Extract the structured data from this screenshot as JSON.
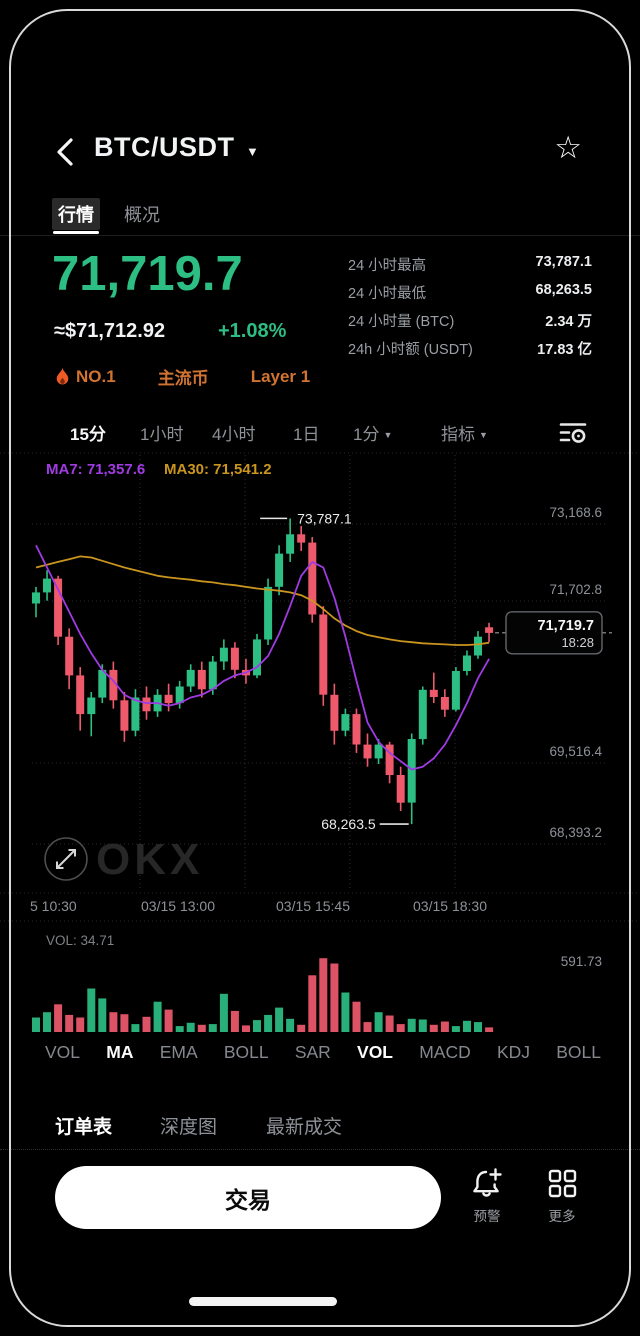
{
  "theme": {
    "up_color": "#2DBE83",
    "down_color": "#EE5A6C",
    "ma7_color": "#A03BE3",
    "ma30_color": "#C9951E",
    "badge_color": "#D27431",
    "flame_color": "#F05A25",
    "grid_color": "#2A2A31",
    "axis_text_color": "#8E9298"
  },
  "icons": {
    "back": "‹",
    "caret_down": "▼",
    "star": "☆"
  },
  "header": {
    "title": "BTC/USDT"
  },
  "tabs": [
    {
      "label": "行情",
      "active": true
    },
    {
      "label": "概况",
      "active": false
    }
  ],
  "price": {
    "last": "71,719.7",
    "fiat": "≈$71,712.92",
    "change": "+1.08%"
  },
  "stats": [
    {
      "label": "24 小时最高",
      "value": "73,787.1"
    },
    {
      "label": "24 小时最低",
      "value": "68,263.5"
    },
    {
      "label": "24 小时量 (BTC)",
      "value": "2.34 万"
    },
    {
      "label": "24h 小时额 (USDT)",
      "value": "17.83 亿"
    }
  ],
  "badges": [
    {
      "label": "NO.1",
      "icon": "flame-icon"
    },
    {
      "label": "主流币"
    },
    {
      "label": "Layer 1"
    }
  ],
  "timeframes": [
    {
      "label": "15分",
      "active": true
    },
    {
      "label": "1小时",
      "active": false
    },
    {
      "label": "4小时",
      "active": false
    },
    {
      "label": "1日",
      "active": false
    },
    {
      "label": "1分",
      "active": false,
      "caret": true
    },
    {
      "label": "指标",
      "active": false,
      "caret": true
    }
  ],
  "chart_data": {
    "type": "candlestick",
    "pair": "BTC/USDT",
    "interval": "15m",
    "legend": [
      {
        "label": "MA7: 71,357.6"
      },
      {
        "label": "MA30: 71,541.2"
      }
    ],
    "y_axis_labels": [
      "73,168.6",
      "71,702.8",
      "69,516.4",
      "68,393.2"
    ],
    "x_axis_labels": [
      "5 10:30",
      "03/15 13:00",
      "03/15 15:45",
      "03/15 18:30"
    ],
    "annotations": {
      "high": "73,787.1",
      "low": "68,263.5"
    },
    "current": {
      "price": "71,719.7",
      "time": "18:28"
    },
    "watermark": "OKX",
    "candles": [
      [
        72250,
        72550,
        72000,
        72450
      ],
      [
        72450,
        72850,
        72300,
        72700
      ],
      [
        72700,
        72750,
        71500,
        71650
      ],
      [
        71650,
        71800,
        70700,
        70950
      ],
      [
        70950,
        71100,
        69950,
        70250
      ],
      [
        70250,
        70650,
        69850,
        70550
      ],
      [
        70550,
        71150,
        70450,
        71050
      ],
      [
        71050,
        71200,
        70350,
        70500
      ],
      [
        70500,
        70650,
        69750,
        69950
      ],
      [
        69950,
        70700,
        69850,
        70550
      ],
      [
        70550,
        70750,
        70150,
        70300
      ],
      [
        70300,
        70700,
        70200,
        70600
      ],
      [
        70600,
        70800,
        70300,
        70450
      ],
      [
        70450,
        70850,
        70350,
        70750
      ],
      [
        70750,
        71150,
        70650,
        71050
      ],
      [
        71050,
        71200,
        70550,
        70700
      ],
      [
        70700,
        71300,
        70600,
        71200
      ],
      [
        71200,
        71600,
        71050,
        71450
      ],
      [
        71450,
        71550,
        70900,
        71050
      ],
      [
        71050,
        71250,
        70800,
        70950
      ],
      [
        70950,
        71700,
        70900,
        71600
      ],
      [
        71600,
        72700,
        71500,
        72550
      ],
      [
        72550,
        73300,
        72400,
        73150
      ],
      [
        73150,
        73787.1,
        73000,
        73500
      ],
      [
        73500,
        73650,
        73200,
        73350
      ],
      [
        73350,
        73450,
        71900,
        72050
      ],
      [
        72050,
        72200,
        70400,
        70600
      ],
      [
        70600,
        70800,
        69700,
        69950
      ],
      [
        69950,
        70350,
        69850,
        70250
      ],
      [
        70250,
        70350,
        69550,
        69700
      ],
      [
        69700,
        69900,
        69300,
        69450
      ],
      [
        69450,
        69800,
        69350,
        69700
      ],
      [
        69700,
        69750,
        69000,
        69150
      ],
      [
        69150,
        69300,
        68500,
        68650
      ],
      [
        68650,
        69900,
        68263.5,
        69800
      ],
      [
        69800,
        70750,
        69700,
        70690
      ],
      [
        70690,
        71000,
        70450,
        70560
      ],
      [
        70560,
        70700,
        70200,
        70330
      ],
      [
        70330,
        71100,
        70300,
        71030
      ],
      [
        71030,
        71400,
        70950,
        71310
      ],
      [
        71310,
        71750,
        71250,
        71650
      ],
      [
        71820,
        71900,
        71550,
        71719.7
      ]
    ],
    "ma7": [
      73300,
      72900,
      72500,
      72100,
      71700,
      71350,
      71050,
      70850,
      70600,
      70500,
      70450,
      70450,
      70400,
      70450,
      70550,
      70600,
      70700,
      70850,
      70950,
      71000,
      71100,
      71300,
      71700,
      72200,
      72750,
      73000,
      72900,
      72350,
      71650,
      70850,
      70100,
      69750,
      69550,
      69400,
      69250,
      69300,
      69450,
      69700,
      70050,
      70450,
      70900,
      71250
    ],
    "ma30": [
      72900,
      72950,
      73000,
      73050,
      73100,
      73080,
      73020,
      72960,
      72900,
      72850,
      72800,
      72750,
      72720,
      72700,
      72680,
      72650,
      72630,
      72600,
      72580,
      72550,
      72520,
      72500,
      72480,
      72450,
      72400,
      72300,
      72150,
      71980,
      71850,
      71750,
      71680,
      71640,
      71600,
      71570,
      71550,
      71530,
      71520,
      71510,
      71500,
      71500,
      71510,
      71540
    ],
    "volume": {
      "label": "VOL: 34.71",
      "axis_max": "591.73",
      "values": [
        110,
        150,
        210,
        130,
        110,
        330,
        255,
        150,
        135,
        60,
        115,
        230,
        170,
        45,
        70,
        55,
        60,
        290,
        160,
        50,
        90,
        130,
        185,
        100,
        55,
        430,
        560,
        520,
        300,
        230,
        75,
        150,
        125,
        60,
        100,
        95,
        55,
        80,
        45,
        85,
        75,
        34.71
      ]
    }
  },
  "indicators": [
    {
      "label": "VOL",
      "active": false
    },
    {
      "label": "MA",
      "active": true
    },
    {
      "label": "EMA",
      "active": false
    },
    {
      "label": "BOLL",
      "active": false
    },
    {
      "label": "SAR",
      "active": false
    },
    {
      "label": "VOL",
      "active": true
    },
    {
      "label": "MACD",
      "active": false
    },
    {
      "label": "KDJ",
      "active": false
    },
    {
      "label": "BOLL",
      "active": false
    }
  ],
  "bottom_tabs": [
    {
      "label": "订单表",
      "active": true
    },
    {
      "label": "深度图",
      "active": false
    },
    {
      "label": "最新成交",
      "active": false
    }
  ],
  "actions": {
    "trade": "交易",
    "alert": "预警",
    "more": "更多"
  }
}
